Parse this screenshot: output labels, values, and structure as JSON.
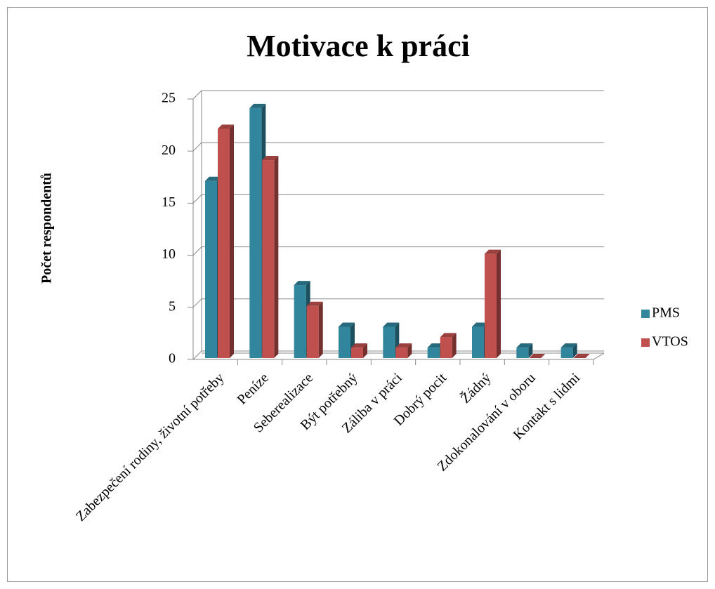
{
  "chart_data": {
    "type": "bar3d",
    "title": "Motivace k práci",
    "y_label": "Počet respondentů",
    "categories": [
      "Zabezpečení rodiny, životní potřeby",
      "Peníze",
      "Seberealizace",
      "Být potřebný",
      "Záliba v práci",
      "Dobrý pocit",
      "Žádný",
      "Zdokonalování v oboru",
      "Kontakt s lidmi"
    ],
    "series": [
      {
        "name": "PMS",
        "color": "#31859c",
        "values": [
          17,
          24,
          7,
          3,
          3,
          1,
          3,
          1,
          1
        ]
      },
      {
        "name": "VTOS",
        "color": "#c0504d",
        "values": [
          22,
          19,
          5,
          1,
          1,
          2,
          10,
          0,
          0
        ]
      }
    ],
    "ylim": [
      0,
      25
    ],
    "yticks": [
      0,
      5,
      10,
      15,
      20,
      25
    ],
    "grid": true,
    "legend": "right"
  }
}
